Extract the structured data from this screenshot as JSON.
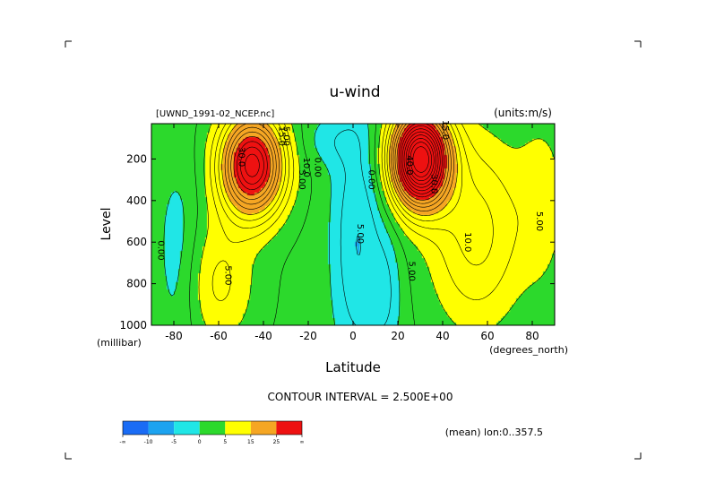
{
  "chart_data": {
    "type": "heatmap",
    "title": "u-wind",
    "file_label": "[UWND_1991-02_NCEP.nc]",
    "units_label": "(units:m/s)",
    "xlabel": "Latitude",
    "x_units": "(degrees_north)",
    "ylabel": "Level",
    "y_units": "(millibar)",
    "xlim": [
      -90,
      90
    ],
    "ylim": [
      1000,
      30
    ],
    "x_ticks": [
      -80,
      -60,
      -40,
      -20,
      0,
      20,
      40,
      60,
      80
    ],
    "x_tick_labels": [
      "-80",
      "-60",
      "-40",
      "-20",
      "0",
      "20",
      "40",
      "60",
      "80"
    ],
    "y_ticks": [
      200,
      400,
      600,
      800,
      1000
    ],
    "y_tick_labels": [
      "200",
      "400",
      "600",
      "800",
      "1000"
    ],
    "contour_interval_text": "CONTOUR INTERVAL = 2.500E+00",
    "annotation": "(mean) lon:0..357.5",
    "colorbar": {
      "labels": [
        "-∞",
        "-10",
        "-5",
        "0",
        "5",
        "15",
        "25",
        "∞"
      ],
      "colors": [
        "#1a6cf5",
        "#1ca3f0",
        "#20e6e6",
        "#2cd92c",
        "#ffff00",
        "#f5a623",
        "#ee1111"
      ]
    },
    "jets": [
      {
        "lat": -45,
        "level": 230,
        "peak": 32
      },
      {
        "lat": 30,
        "level": 200,
        "peak": 45
      }
    ],
    "contour_labels": [
      {
        "text": "30.0",
        "lat": -51,
        "level": 190
      },
      {
        "text": "10.0",
        "lat": -22,
        "level": 240
      },
      {
        "text": "5.00",
        "lat": -24,
        "level": 300
      },
      {
        "text": "0.00",
        "lat": -17,
        "level": 240
      },
      {
        "text": "15.0",
        "lat": -33,
        "level": 90
      },
      {
        "text": "5.00",
        "lat": -31,
        "level": 90
      },
      {
        "text": "0.00",
        "lat": -87,
        "level": 640
      },
      {
        "text": "5.00",
        "lat": -57,
        "level": 760
      },
      {
        "text": "0.00",
        "lat": 7,
        "level": 300
      },
      {
        "text": "5.00",
        "lat": 2,
        "level": 560
      },
      {
        "text": "5.00",
        "lat": 25,
        "level": 740
      },
      {
        "text": "40.0",
        "lat": 24,
        "level": 230
      },
      {
        "text": "30.0",
        "lat": 35,
        "level": 320
      },
      {
        "text": "15.0",
        "lat": 40,
        "level": 60
      },
      {
        "text": "10.0",
        "lat": 50,
        "level": 600
      },
      {
        "text": "5.00",
        "lat": 82,
        "level": 500
      }
    ]
  }
}
